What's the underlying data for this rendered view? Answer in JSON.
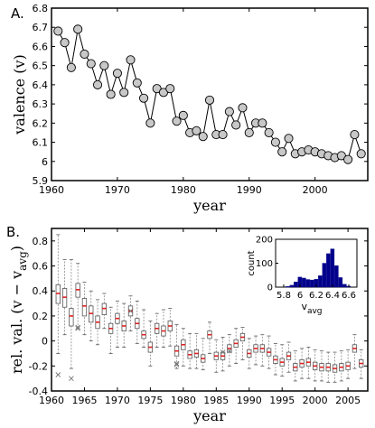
{
  "chart_data": [
    {
      "type": "line",
      "panel_label": "A.",
      "xlabel": "year",
      "ylabel": "valence (v)",
      "xlim": [
        1960,
        2008
      ],
      "ylim": [
        5.9,
        6.8
      ],
      "xticks": [
        "1960",
        "1970",
        "1980",
        "1990",
        "2000"
      ],
      "yticks": [
        "5.9",
        "6",
        "6.1",
        "6.2",
        "6.3",
        "6.4",
        "6.5",
        "6.6",
        "6.7",
        "6.8"
      ],
      "marker": "circle",
      "marker_color": "#c8c8c8",
      "line_color": "#000000",
      "x": [
        1961,
        1962,
        1963,
        1964,
        1965,
        1966,
        1967,
        1968,
        1969,
        1970,
        1971,
        1972,
        1973,
        1974,
        1975,
        1976,
        1977,
        1978,
        1979,
        1980,
        1981,
        1982,
        1983,
        1984,
        1985,
        1986,
        1987,
        1988,
        1989,
        1990,
        1991,
        1992,
        1993,
        1994,
        1995,
        1996,
        1997,
        1998,
        1999,
        2000,
        2001,
        2002,
        2003,
        2004,
        2005,
        2006,
        2007
      ],
      "y": [
        6.68,
        6.62,
        6.49,
        6.69,
        6.56,
        6.51,
        6.4,
        6.5,
        6.35,
        6.46,
        6.36,
        6.53,
        6.41,
        6.33,
        6.2,
        6.38,
        6.36,
        6.38,
        6.21,
        6.24,
        6.15,
        6.16,
        6.13,
        6.32,
        6.14,
        6.14,
        6.26,
        6.19,
        6.28,
        6.15,
        6.2,
        6.2,
        6.15,
        6.1,
        6.05,
        6.12,
        6.04,
        6.05,
        6.06,
        6.05,
        6.04,
        6.03,
        6.02,
        6.03,
        6.01,
        6.14,
        6.04
      ]
    },
    {
      "type": "box",
      "panel_label": "B.",
      "xlabel": "year",
      "ylabel_main": "rel. val. (v − v",
      "ylabel_sub": "avg",
      "ylabel_close": ")",
      "xlim": [
        1960,
        2008
      ],
      "ylim": [
        -0.4,
        0.9
      ],
      "xticks": [
        "1960",
        "1965",
        "1970",
        "1975",
        "1980",
        "1985",
        "1990",
        "1995",
        "2000",
        "2005"
      ],
      "yticks": [
        "-0.4",
        "-0.2",
        "0",
        "0.2",
        "0.4",
        "0.6",
        "0.8"
      ],
      "median_color": "#e02020",
      "outlier_marker": "x",
      "x": [
        1961,
        1962,
        1963,
        1964,
        1965,
        1966,
        1967,
        1968,
        1969,
        1970,
        1971,
        1972,
        1973,
        1974,
        1975,
        1976,
        1977,
        1978,
        1979,
        1980,
        1981,
        1982,
        1983,
        1984,
        1985,
        1986,
        1987,
        1988,
        1989,
        1990,
        1991,
        1992,
        1993,
        1994,
        1995,
        1996,
        1997,
        1998,
        1999,
        2000,
        2001,
        2002,
        2003,
        2004,
        2005,
        2006,
        2007
      ],
      "medians": [
        0.38,
        0.35,
        0.2,
        0.41,
        0.28,
        0.22,
        0.15,
        0.26,
        0.1,
        0.18,
        0.12,
        0.24,
        0.14,
        0.05,
        -0.05,
        0.1,
        0.08,
        0.12,
        -0.08,
        -0.03,
        -0.11,
        -0.1,
        -0.14,
        0.05,
        -0.12,
        -0.12,
        -0.06,
        -0.02,
        0.03,
        -0.1,
        -0.06,
        -0.06,
        -0.09,
        -0.15,
        -0.17,
        -0.12,
        -0.21,
        -0.18,
        -0.17,
        -0.2,
        -0.21,
        -0.21,
        -0.22,
        -0.21,
        -0.2,
        -0.06,
        -0.18
      ],
      "q1": [
        0.3,
        0.27,
        0.12,
        0.35,
        0.2,
        0.15,
        0.1,
        0.21,
        0.06,
        0.14,
        0.08,
        0.2,
        0.1,
        0.02,
        -0.09,
        0.06,
        0.04,
        0.08,
        -0.12,
        -0.07,
        -0.14,
        -0.13,
        -0.17,
        0.02,
        -0.15,
        -0.15,
        -0.09,
        -0.05,
        0.0,
        -0.13,
        -0.09,
        -0.09,
        -0.12,
        -0.18,
        -0.2,
        -0.15,
        -0.24,
        -0.21,
        -0.2,
        -0.23,
        -0.24,
        -0.24,
        -0.25,
        -0.24,
        -0.23,
        -0.09,
        -0.21
      ],
      "q3": [
        0.45,
        0.42,
        0.26,
        0.46,
        0.34,
        0.28,
        0.2,
        0.3,
        0.14,
        0.22,
        0.16,
        0.28,
        0.18,
        0.08,
        -0.01,
        0.14,
        0.12,
        0.16,
        -0.04,
        0.01,
        -0.08,
        -0.07,
        -0.11,
        0.08,
        -0.09,
        -0.09,
        -0.03,
        0.01,
        0.06,
        -0.07,
        -0.03,
        -0.03,
        -0.06,
        -0.12,
        -0.14,
        -0.09,
        -0.18,
        -0.15,
        -0.14,
        -0.17,
        -0.18,
        -0.18,
        -0.19,
        -0.18,
        -0.17,
        -0.03,
        -0.15
      ],
      "whisker_low": [
        -0.1,
        0.05,
        -0.22,
        0.1,
        0.05,
        0.0,
        -0.03,
        0.1,
        -0.1,
        -0.05,
        -0.05,
        0.08,
        -0.02,
        -0.05,
        -0.2,
        -0.05,
        -0.05,
        -0.04,
        -0.22,
        -0.2,
        -0.22,
        -0.22,
        -0.23,
        -0.1,
        -0.25,
        -0.24,
        -0.2,
        -0.18,
        -0.15,
        -0.22,
        -0.19,
        -0.2,
        -0.22,
        -0.27,
        -0.28,
        -0.25,
        -0.32,
        -0.3,
        -0.3,
        -0.32,
        -0.32,
        -0.33,
        -0.33,
        -0.32,
        -0.3,
        -0.22,
        -0.3
      ],
      "whisker_high": [
        0.85,
        0.65,
        0.65,
        0.62,
        0.47,
        0.4,
        0.33,
        0.38,
        0.27,
        0.32,
        0.3,
        0.36,
        0.32,
        0.25,
        0.16,
        0.22,
        0.25,
        0.26,
        0.13,
        0.1,
        0.06,
        0.06,
        0.02,
        0.15,
        0.01,
        0.03,
        0.05,
        0.1,
        0.11,
        0.02,
        0.04,
        0.05,
        0.04,
        -0.02,
        -0.03,
        -0.01,
        -0.08,
        -0.06,
        -0.05,
        -0.07,
        -0.08,
        -0.09,
        -0.09,
        -0.08,
        -0.07,
        0.05,
        -0.07
      ],
      "outliers": [
        {
          "x": 1961,
          "y": -0.27
        },
        {
          "x": 1963,
          "y": -0.3
        },
        {
          "x": 1964,
          "y": 0.11
        },
        {
          "x": 1964,
          "y": 0.1
        },
        {
          "x": 1972,
          "y": 0.24
        },
        {
          "x": 1979,
          "y": -0.18
        },
        {
          "x": 1979,
          "y": -0.19
        },
        {
          "x": 1986,
          "y": -0.09
        },
        {
          "x": 1987,
          "y": -0.08
        }
      ],
      "inset": {
        "type": "bar",
        "xlabel_main": "v",
        "xlabel_sub": "avg",
        "ylabel": "count",
        "xlim": [
          5.7,
          6.7
        ],
        "ylim": [
          0,
          200
        ],
        "xticks": [
          "5.8",
          "6",
          "6.2",
          "6.4",
          "6.6"
        ],
        "yticks": [
          "0",
          "100",
          "200"
        ],
        "bar_color": "#00008b",
        "bins": [
          5.85,
          5.9,
          5.95,
          6.0,
          6.05,
          6.1,
          6.15,
          6.2,
          6.25,
          6.3,
          6.35,
          6.4,
          6.45,
          6.5,
          6.55,
          6.6
        ],
        "counts": [
          3,
          8,
          22,
          42,
          38,
          32,
          30,
          33,
          48,
          100,
          140,
          160,
          90,
          40,
          12,
          4
        ]
      }
    }
  ]
}
